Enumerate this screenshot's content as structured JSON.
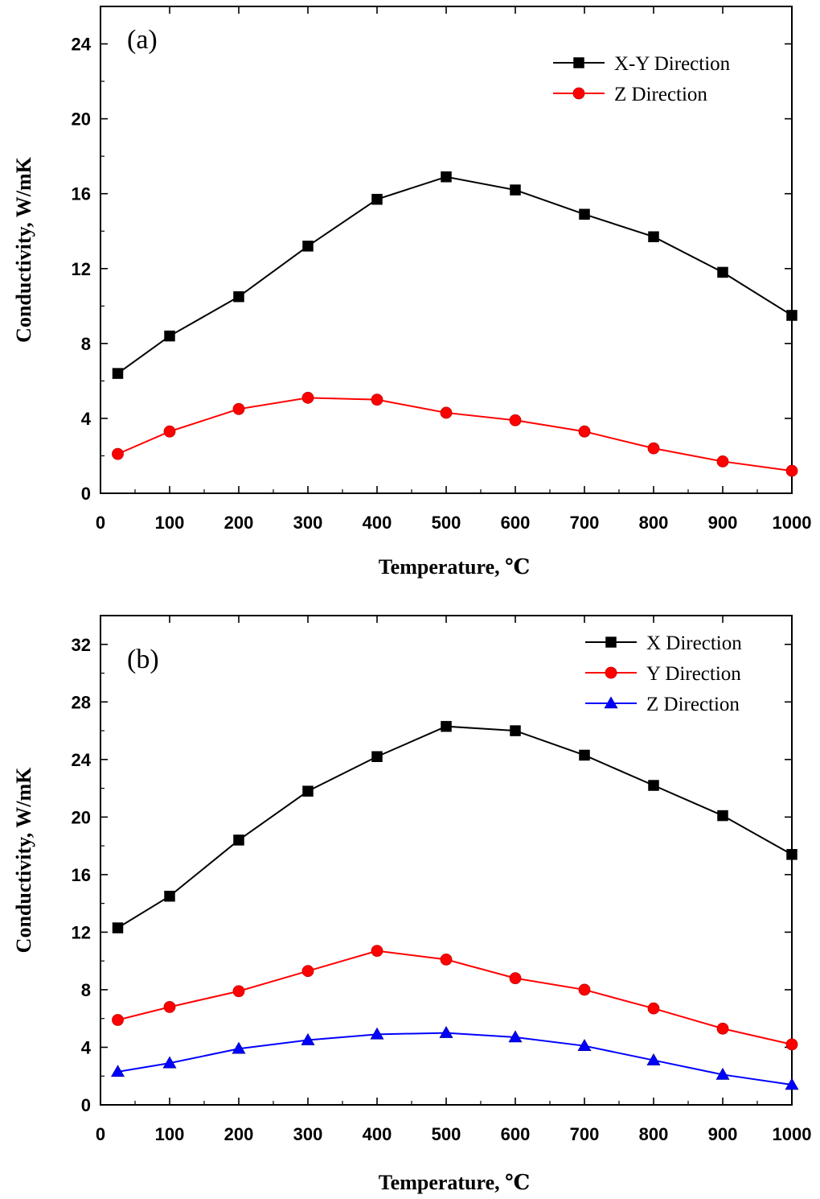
{
  "chart_data": [
    {
      "type": "line",
      "panel_label": "(a)",
      "xlabel": "Temperature, ℃",
      "ylabel": "Conductivity, W/mK",
      "xlim": [
        0,
        1000
      ],
      "ylim": [
        0,
        26
      ],
      "x_ticks": [
        0,
        100,
        200,
        300,
        400,
        500,
        600,
        700,
        800,
        900,
        1000
      ],
      "y_ticks": [
        0,
        4,
        8,
        12,
        16,
        20,
        24
      ],
      "x": [
        25,
        100,
        200,
        300,
        400,
        500,
        600,
        700,
        800,
        900,
        1000
      ],
      "series": [
        {
          "name": "X-Y Direction",
          "color": "#000000",
          "marker": "square",
          "values": [
            6.4,
            8.4,
            10.5,
            13.2,
            15.7,
            16.9,
            16.2,
            14.9,
            13.7,
            11.8,
            9.5
          ]
        },
        {
          "name": "Z Direction",
          "color": "#ff0000",
          "marker": "circle",
          "values": [
            2.1,
            3.3,
            4.5,
            5.1,
            5.0,
            4.3,
            3.9,
            3.3,
            2.4,
            1.7,
            1.2
          ]
        }
      ],
      "legend_position": "top-right"
    },
    {
      "type": "line",
      "panel_label": "(b)",
      "xlabel": "Temperature, ℃",
      "ylabel": "Conductivity, W/mK",
      "xlim": [
        0,
        1000
      ],
      "ylim": [
        0,
        34
      ],
      "x_ticks": [
        0,
        100,
        200,
        300,
        400,
        500,
        600,
        700,
        800,
        900,
        1000
      ],
      "y_ticks": [
        0,
        4,
        8,
        12,
        16,
        20,
        24,
        28,
        32
      ],
      "x": [
        25,
        100,
        200,
        300,
        400,
        500,
        600,
        700,
        800,
        900,
        1000
      ],
      "series": [
        {
          "name": "X Direction",
          "color": "#000000",
          "marker": "square",
          "values": [
            12.3,
            14.5,
            18.4,
            21.8,
            24.2,
            26.3,
            26.0,
            24.3,
            22.2,
            20.1,
            17.4
          ]
        },
        {
          "name": "Y Direction",
          "color": "#ff0000",
          "marker": "circle",
          "values": [
            5.9,
            6.8,
            7.9,
            9.3,
            10.7,
            10.1,
            8.8,
            8.0,
            6.7,
            5.3,
            4.2
          ]
        },
        {
          "name": "Z Direction",
          "color": "#0000ff",
          "marker": "triangle",
          "values": [
            2.3,
            2.9,
            3.9,
            4.5,
            4.9,
            5.0,
            4.7,
            4.1,
            3.1,
            2.1,
            1.4
          ]
        }
      ],
      "legend_position": "top-right"
    }
  ]
}
